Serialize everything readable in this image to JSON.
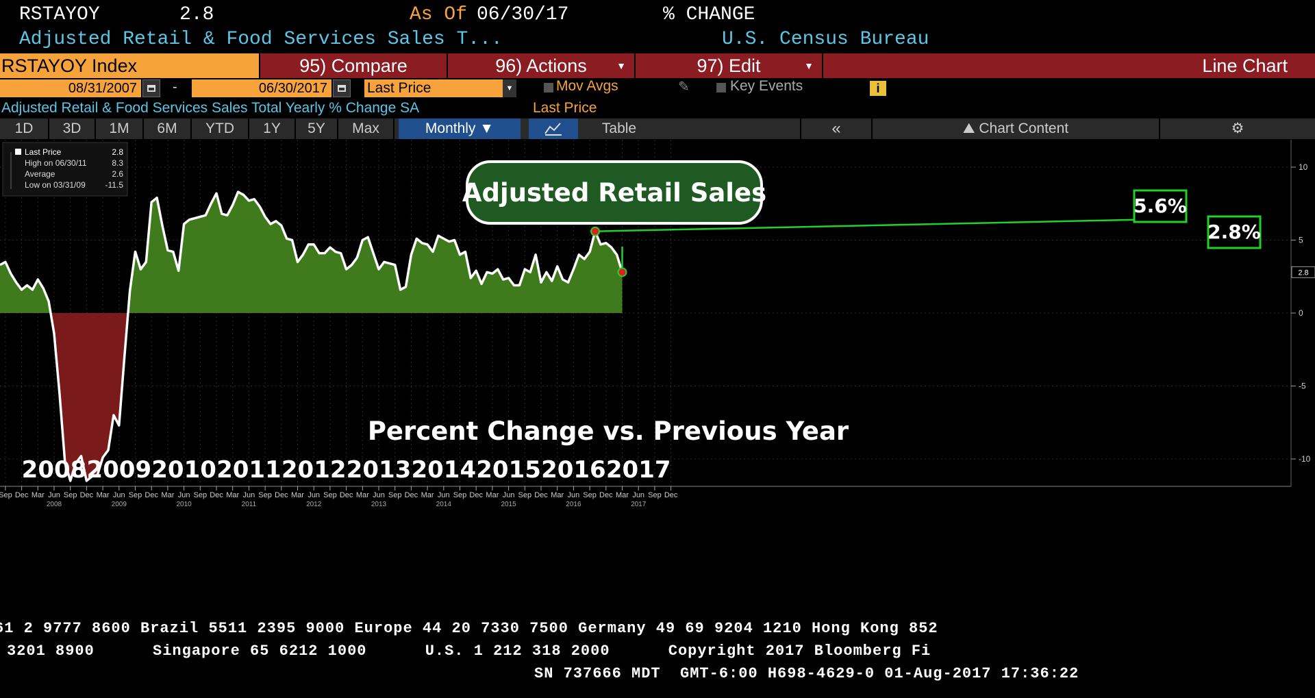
{
  "header": {
    "ticker": "RSTAYOY",
    "last_value": "2.8",
    "as_of_label": "As Of",
    "as_of_date": "06/30/17",
    "change_label": "% CHANGE",
    "description": "Adjusted Retail & Food Services Sales T...",
    "source": "U.S. Census Bureau"
  },
  "toolbar": {
    "index_label": "RSTAYOY Index",
    "compare_label": "95) Compare",
    "actions_label": "96) Actions",
    "edit_label": "97) Edit",
    "chart_type_label": "Line Chart"
  },
  "controls": {
    "start_date": "08/31/2007",
    "end_date": "06/30/2017",
    "date_separator": "-",
    "price_field": "Last Price",
    "mov_avgs_label": "Mov Avgs",
    "key_events_label": "Key Events",
    "info_label": "i"
  },
  "subtitle": {
    "series_desc": "Adjusted Retail & Food Services Sales Total Yearly % Change SA",
    "field": "Last Price"
  },
  "periods": {
    "items": [
      "1D",
      "3D",
      "1M",
      "6M",
      "YTD",
      "1Y",
      "5Y",
      "Max"
    ],
    "frequency": "Monthly",
    "table_label": "Table",
    "chart_content_label": "Chart Content"
  },
  "legend": {
    "rows": [
      {
        "label": "Last Price",
        "value": "2.8"
      },
      {
        "label": "High on 06/30/11",
        "value": "8.3"
      },
      {
        "label": "Average",
        "value": "2.6"
      },
      {
        "label": "Low on 03/31/09",
        "value": "-11.5"
      }
    ]
  },
  "overlay": {
    "title": "Adjusted Retail Sales",
    "caption": "Percent Change vs. Previous Year",
    "callout_high": "5.6%",
    "callout_last": "2.8%",
    "last_tag": "2.8"
  },
  "colors": {
    "positive_fill": "#3f7a1c",
    "negative_fill": "#7a1a1a",
    "accent_orange": "#f7a33c",
    "toolbar_red": "#8b1c22",
    "callout_green": "#22d02a"
  },
  "chart_data": {
    "type": "area",
    "start": "2007-08",
    "frequency": "monthly",
    "ylim": [
      -13,
      16
    ],
    "yticks": [
      15,
      10,
      5,
      0,
      -5,
      -10
    ],
    "values": [
      3.3,
      3.5,
      2.7,
      2.1,
      1.6,
      1.9,
      1.6,
      2.3,
      1.7,
      0.8,
      -1.4,
      -5.5,
      -10.2,
      -11.5,
      -10.3,
      -9.8,
      -11.5,
      -11.2,
      -11.1,
      -9.9,
      -9.4,
      -7.0,
      -7.7,
      -3.0,
      1.5,
      4.2,
      3.0,
      3.5,
      7.6,
      7.9,
      6.0,
      4.3,
      4.2,
      2.9,
      6.1,
      6.4,
      6.5,
      6.6,
      6.7,
      7.5,
      8.2,
      6.8,
      6.7,
      7.4,
      8.3,
      8.1,
      7.7,
      7.8,
      7.3,
      6.6,
      6.1,
      6.3,
      6.0,
      5.1,
      5.0,
      3.5,
      4.0,
      4.7,
      4.7,
      4.1,
      4.1,
      4.5,
      4.2,
      4.1,
      3.0,
      3.3,
      3.8,
      5.0,
      5.2,
      4.1,
      3.0,
      3.5,
      3.4,
      3.3,
      1.6,
      1.8,
      4.0,
      5.1,
      4.8,
      4.7,
      4.2,
      5.3,
      5.1,
      4.9,
      5.0,
      4.0,
      4.2,
      2.4,
      2.9,
      2.0,
      2.8,
      2.7,
      3.0,
      2.3,
      2.4,
      1.9,
      1.9,
      3.0,
      2.8,
      4.0,
      2.1,
      2.8,
      2.2,
      3.2,
      2.3,
      2.1,
      3.0,
      4.0,
      3.7,
      4.2,
      5.6,
      4.7,
      4.8,
      4.5,
      4.0,
      2.8
    ],
    "year_labels": [
      "2008",
      "2009",
      "2010",
      "2011",
      "2012",
      "2013",
      "2014",
      "2015",
      "2016",
      "2017"
    ],
    "month_labels": [
      "Dec",
      "Mar",
      "Jun",
      "Sep"
    ]
  },
  "footer": {
    "line1": "61 2 9777 8600 Brazil 5511 2395 9000 Europe 44 20 7330 7500 Germany 49 69 9204 1210 Hong Kong 852",
    "line2": "3201 8900      Singapore 65 6212 1000      U.S. 1 212 318 2000      Copyright 2017 Bloomberg Fi",
    "line3": "SN 737666 MDT  GMT-6:00 H698-4629-0 01-Aug-2017 17:36:22"
  }
}
